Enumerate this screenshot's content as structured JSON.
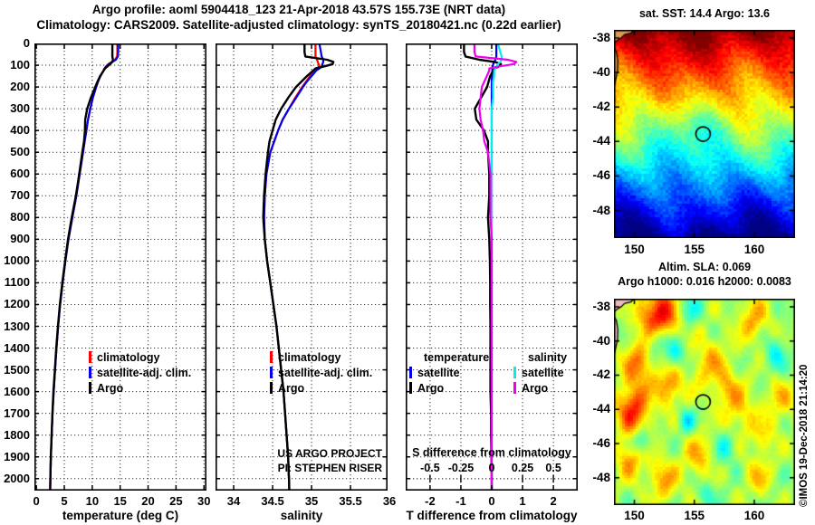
{
  "header": {
    "title_line1": "Argo profile: aoml 5904418_123 21-Apr-2018 43.57S 155.73E (NRT data)",
    "title_line2": "Climatology: CARS2009. Satellite-adjusted climatology: synTS_20180421.nc (0.22d earlier)"
  },
  "footer": {
    "credit": "©IMOS 19-Dec-2018 21:14:20"
  },
  "colors": {
    "climatology": "#ff0000",
    "satellite_adj": "#0000ee",
    "argo": "#000000",
    "s_satellite": "#00eeee",
    "s_argo": "#ee00ee",
    "grid": "#333333",
    "axis": "#000000"
  },
  "chart_data": {
    "profiles": {
      "ylim": [
        0,
        2055
      ],
      "yticks": [
        0,
        100,
        200,
        300,
        400,
        500,
        600,
        700,
        800,
        900,
        1000,
        1100,
        1200,
        1300,
        1400,
        1500,
        1600,
        1700,
        1800,
        1900,
        2000
      ],
      "depths": [
        0,
        20,
        40,
        60,
        75,
        85,
        95,
        105,
        115,
        125,
        150,
        175,
        200,
        250,
        300,
        350,
        400,
        450,
        500,
        600,
        700,
        800,
        900,
        1000,
        1100,
        1200,
        1300,
        1400,
        1500,
        1600,
        1700,
        1800,
        1900,
        2000,
        2055
      ],
      "panels": [
        {
          "id": "temperature",
          "xlabel": "temperature (deg C)",
          "xlim": [
            -0.35,
            30.45
          ],
          "xticks": [
            0,
            5,
            10,
            15,
            20,
            25,
            30
          ],
          "legend": [
            {
              "label": "climatology",
              "color": "#ff0000"
            },
            {
              "label": "satellite-adj. clim.",
              "color": "#0000ee"
            },
            {
              "label": "Argo",
              "color": "#000000"
            }
          ],
          "series": [
            {
              "name": "climatology",
              "color": "#ff0000",
              "scale": 1,
              "values": [
                14.5,
                14.5,
                14.5,
                14.45,
                14.1,
                13.5,
                12.9,
                12.5,
                12.2,
                12.0,
                11.45,
                11.05,
                10.7,
                10.1,
                9.65,
                9.25,
                8.95,
                8.65,
                8.35,
                7.75,
                7.15,
                6.45,
                5.75,
                5.2,
                4.7,
                4.25,
                3.9,
                3.6,
                3.35,
                3.1,
                2.9,
                2.75,
                2.6,
                2.5,
                2.47
              ]
            },
            {
              "name": "satellite-adj. clim.",
              "color": "#0000ee",
              "scale": 1,
              "values": [
                14.65,
                14.65,
                14.65,
                14.6,
                14.22,
                13.58,
                12.95,
                12.53,
                12.22,
                12.02,
                11.46,
                11.05,
                10.7,
                10.1,
                9.65,
                9.25,
                8.95,
                8.65,
                8.35,
                7.75,
                7.15,
                6.45,
                5.75,
                5.2,
                4.7,
                4.25,
                3.9,
                3.6,
                3.35,
                3.1,
                2.9,
                2.75,
                2.6,
                2.5,
                2.47
              ]
            },
            {
              "name": "Argo",
              "color": "#000000",
              "scale": 1,
              "values": [
                13.6,
                13.6,
                13.6,
                13.6,
                13.7,
                13.6,
                13.2,
                12.75,
                12.3,
                12.05,
                11.4,
                10.95,
                10.55,
                9.75,
                9.1,
                8.75,
                8.7,
                8.53,
                8.23,
                7.67,
                7.07,
                6.33,
                5.67,
                5.14,
                4.65,
                4.2,
                3.86,
                3.56,
                3.31,
                3.06,
                2.88,
                2.73,
                2.59,
                2.5,
                2.47
              ]
            }
          ]
        },
        {
          "id": "salinity",
          "xlabel": "salinity",
          "xlim": [
            33.767,
            35.976
          ],
          "xticks": [
            34,
            34.5,
            35,
            35.5,
            36
          ],
          "legend": [
            {
              "label": "climatology",
              "color": "#ff0000"
            },
            {
              "label": "satellite-adj. clim.",
              "color": "#0000ee"
            },
            {
              "label": "Argo",
              "color": "#000000"
            }
          ],
          "inside_note": [
            "US ARGO PROJECT",
            "PI: STEPHEN RISER"
          ],
          "series": [
            {
              "name": "climatology",
              "color": "#ff0000",
              "scale": 1,
              "values": [
                35.05,
                35.05,
                35.05,
                35.05,
                35.07,
                35.08,
                35.09,
                35.1,
                35.07,
                35.04,
                34.98,
                34.93,
                34.88,
                34.79,
                34.71,
                34.63,
                34.57,
                34.52,
                34.47,
                34.42,
                34.4,
                34.39,
                34.4,
                34.43,
                34.47,
                34.51,
                34.55,
                34.58,
                34.61,
                34.64,
                34.66,
                34.68,
                34.7,
                34.71,
                34.715
              ]
            },
            {
              "name": "satellite-adj. clim.",
              "color": "#0000ee",
              "scale": 1,
              "values": [
                35.1,
                35.11,
                35.12,
                35.13,
                35.15,
                35.15,
                35.14,
                35.14,
                35.1,
                35.06,
                35.0,
                34.94,
                34.89,
                34.8,
                34.71,
                34.63,
                34.57,
                34.52,
                34.47,
                34.42,
                34.4,
                34.39,
                34.4,
                34.43,
                34.47,
                34.51,
                34.55,
                34.58,
                34.61,
                34.64,
                34.66,
                34.68,
                34.7,
                34.71,
                34.715
              ]
            },
            {
              "name": "Argo",
              "color": "#000000",
              "scale": 1,
              "values": [
                34.91,
                34.91,
                34.91,
                34.92,
                35.2,
                35.28,
                35.27,
                35.17,
                35.05,
                35.02,
                34.94,
                34.87,
                34.8,
                34.7,
                34.61,
                34.54,
                34.5,
                34.46,
                34.44,
                34.41,
                34.39,
                34.38,
                34.4,
                34.43,
                34.47,
                34.51,
                34.55,
                34.58,
                34.61,
                34.64,
                34.66,
                34.68,
                34.7,
                34.71,
                34.715
              ]
            }
          ]
        },
        {
          "id": "difference",
          "xlabel": "T difference from climatology",
          "xlim": [
            -2.79,
            2.79
          ],
          "xticks": [
            -2,
            -1,
            0,
            1,
            2
          ],
          "s_axis": {
            "label": "S difference from climatology",
            "ticks": [
              -0.5,
              -0.25,
              0,
              0.25,
              0.5
            ],
            "scale": 4
          },
          "legend_cols": [
            {
              "header": "temperature",
              "entries": [
                {
                  "label": "satellite",
                  "color": "#0000ee"
                },
                {
                  "label": "Argo",
                  "color": "#000000"
                }
              ]
            },
            {
              "header": "salinity",
              "entries": [
                {
                  "label": "satellite",
                  "color": "#00eeee"
                },
                {
                  "label": "Argo",
                  "color": "#ee00ee"
                }
              ]
            }
          ],
          "series": [
            {
              "name": "T satellite",
              "color": "#0000ee",
              "scale": 1,
              "values": [
                0.15,
                0.15,
                0.15,
                0.15,
                0.12,
                0.08,
                0.05,
                0.03,
                0.02,
                0.02,
                0.01,
                0,
                0,
                0,
                0,
                0,
                0,
                0,
                0,
                0,
                0,
                0,
                0,
                0,
                0,
                0,
                0,
                0,
                0,
                0,
                0,
                0,
                0,
                0,
                0
              ]
            },
            {
              "name": "T Argo",
              "color": "#000000",
              "scale": 1,
              "values": [
                -0.9,
                -0.9,
                -0.9,
                -0.85,
                -0.4,
                0.1,
                0.3,
                0.25,
                0.1,
                0.05,
                -0.05,
                -0.1,
                -0.15,
                -0.35,
                -0.55,
                -0.5,
                -0.25,
                -0.12,
                -0.12,
                -0.08,
                -0.08,
                -0.12,
                -0.08,
                -0.06,
                -0.05,
                -0.05,
                -0.04,
                -0.04,
                -0.04,
                -0.04,
                -0.02,
                -0.02,
                -0.01,
                0,
                0
              ]
            },
            {
              "name": "S satellite",
              "color": "#00eeee",
              "scale": 4,
              "values": [
                0.05,
                0.06,
                0.07,
                0.08,
                0.08,
                0.07,
                0.05,
                0.04,
                0.03,
                0.02,
                0.02,
                0.01,
                0.01,
                0.01,
                0,
                0,
                0,
                0,
                0,
                0,
                0,
                0,
                0,
                0,
                0,
                0,
                0,
                0,
                0,
                0,
                0,
                0,
                0,
                0,
                0
              ]
            },
            {
              "name": "S Argo",
              "color": "#ee00ee",
              "scale": 4,
              "values": [
                -0.14,
                -0.14,
                -0.14,
                -0.13,
                0.13,
                0.2,
                0.18,
                0.07,
                -0.02,
                -0.02,
                -0.04,
                -0.06,
                -0.08,
                -0.09,
                -0.1,
                -0.09,
                -0.07,
                -0.06,
                -0.03,
                -0.01,
                -0.01,
                -0.01,
                0,
                0,
                0,
                0,
                0,
                0,
                0,
                0,
                0,
                0,
                0,
                0,
                0
              ]
            }
          ]
        }
      ]
    },
    "maps": [
      {
        "id": "sst",
        "title": "sat. SST: 14.4 Argo: 13.6",
        "lon_range": [
          148.3,
          163.4
        ],
        "lat_range": [
          -49.6,
          -37.53
        ],
        "lon_ticks": [
          150,
          155,
          160
        ],
        "lat_ticks": [
          -38,
          -40,
          -42,
          -44,
          -46,
          -48
        ],
        "marker": {
          "lon": 155.73,
          "lat": -43.57
        },
        "style": "sst",
        "land_fill": "#dd9955",
        "value_note": "SST field, warm (dark red ~18C) north to cold (dark blue ~8C) south"
      },
      {
        "id": "sla",
        "title": "Altim. SLA: 0.069",
        "title2": "Argo h1000: 0.016 h2000: 0.0083",
        "lon_range": [
          148.3,
          163.4
        ],
        "lat_range": [
          -49.6,
          -37.53
        ],
        "lon_ticks": [
          150,
          155,
          160
        ],
        "lat_ticks": [
          -38,
          -40,
          -42,
          -44,
          -46,
          -48
        ],
        "marker": {
          "lon": 155.73,
          "lat": -43.57
        },
        "style": "sla",
        "land_fill": "#eebbbb",
        "blobs": [
          [
            152.0,
            -38.6,
            1.0,
            1.1
          ],
          [
            150.3,
            -41.4,
            0.55,
            0.9
          ],
          [
            152.9,
            -42.6,
            0.6,
            0.8
          ],
          [
            149.9,
            -44.0,
            0.8,
            1.0
          ],
          [
            149.6,
            -46.9,
            0.5,
            0.8
          ],
          [
            152.4,
            -48.1,
            0.45,
            0.9
          ],
          [
            156.3,
            -41.3,
            0.4,
            1.1
          ],
          [
            159.9,
            -38.8,
            0.45,
            0.9
          ],
          [
            162.2,
            -43.5,
            0.35,
            0.9
          ],
          [
            158.8,
            -44.2,
            0.35,
            1.0
          ],
          [
            155.4,
            -46.7,
            0.4,
            0.9
          ],
          [
            160.3,
            -47.9,
            0.35,
            0.8
          ],
          [
            151.8,
            -39.8,
            -0.55,
            0.6
          ],
          [
            153.2,
            -40.7,
            -0.5,
            0.7
          ],
          [
            150.5,
            -45.9,
            -0.5,
            0.5
          ],
          [
            154.3,
            -44.7,
            -0.4,
            0.5
          ],
          [
            157.6,
            -46.2,
            -0.35,
            0.7
          ],
          [
            161.8,
            -40.8,
            -0.35,
            0.7
          ],
          [
            156.2,
            -48.9,
            -0.3,
            0.5
          ],
          [
            154.6,
            -38.2,
            -0.35,
            0.6
          ],
          [
            157.8,
            -42.8,
            0.3,
            0.8
          ],
          [
            160.8,
            -45.6,
            0.3,
            0.7
          ]
        ],
        "land_polys_note": "coast fragments top-left corner"
      }
    ]
  }
}
